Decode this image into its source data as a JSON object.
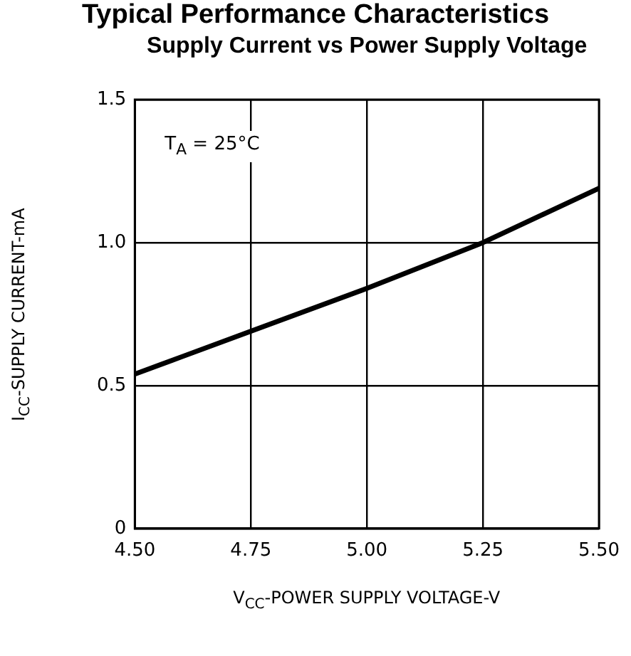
{
  "chart_data": {
    "type": "line",
    "title": "Supply Current vs Power Supply Voltage",
    "xlabel": "V$_{CC}$-POWER SUPPLY VOLTAGE-V",
    "ylabel": "I$_{CC}$-SUPPLY CURRENT-mA",
    "annotations": [
      "Typical Performance Characteristics",
      "T$_{A}$ = 25°C"
    ],
    "x": [
      4.5,
      4.75,
      5.0,
      5.25,
      5.5
    ],
    "series": [
      {
        "color": "#000000",
        "values": [
          0.54,
          0.69,
          0.84,
          1.0,
          1.19
        ]
      }
    ],
    "xlim": [
      4.5,
      5.5
    ],
    "xticks": [
      {
        "value": 4.5,
        "label": "4.50"
      },
      {
        "value": 4.75,
        "label": "4.75"
      },
      {
        "value": 5.0,
        "label": "5.00"
      },
      {
        "value": 5.25,
        "label": "5.25"
      },
      {
        "value": 5.5,
        "label": "5.50"
      }
    ],
    "ylim": [
      0,
      1.5
    ],
    "yticks": [
      0,
      0.5,
      {
        "value": 1.0,
        "label": "1.0"
      },
      1.5
    ],
    "grid": true,
    "legend": false,
    "marker": "none",
    "line_style": "solid"
  }
}
